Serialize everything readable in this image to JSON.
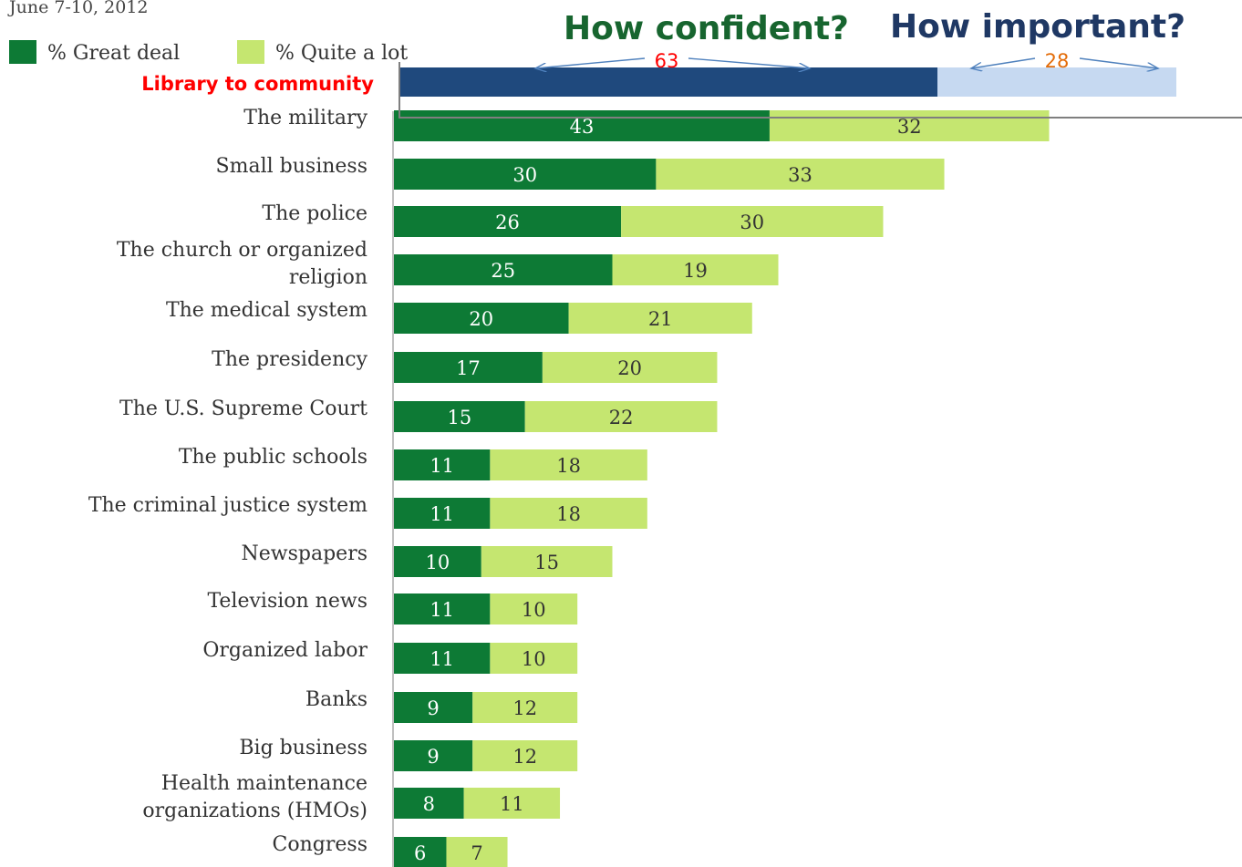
{
  "header": {
    "date_text": "June 7-10, 2012",
    "title_confident": "How confident?",
    "title_important": "How important?"
  },
  "legend": {
    "items": [
      {
        "label": "% Great deal",
        "color": "#0d7a35"
      },
      {
        "label": "% Quite a lot",
        "color": "#c5e670"
      }
    ]
  },
  "library_bar": {
    "label": "Library to community",
    "confident_value": 63,
    "important_value": 28,
    "confident_color": "#1f497d",
    "important_color": "#c6d9f1"
  },
  "chart_data": {
    "type": "bar",
    "orientation": "horizontal",
    "stacked": true,
    "categories": [
      "The military",
      "Small business",
      "The police",
      "The church or organized religion",
      "The medical system",
      "The presidency",
      "The U.S. Supreme Court",
      "The public schools",
      "The criminal justice system",
      "Newspapers",
      "Television news",
      "Organized labor",
      "Banks",
      "Big business",
      "Health maintenance organizations (HMOs)",
      "Congress"
    ],
    "series": [
      {
        "name": "% Great deal",
        "color": "#0d7a35",
        "values": [
          43,
          30,
          26,
          25,
          20,
          17,
          15,
          11,
          11,
          10,
          11,
          11,
          9,
          9,
          8,
          6
        ]
      },
      {
        "name": "% Quite a lot",
        "color": "#c5e670",
        "values": [
          32,
          33,
          30,
          19,
          21,
          20,
          22,
          18,
          18,
          15,
          10,
          10,
          12,
          12,
          11,
          7
        ]
      }
    ]
  }
}
